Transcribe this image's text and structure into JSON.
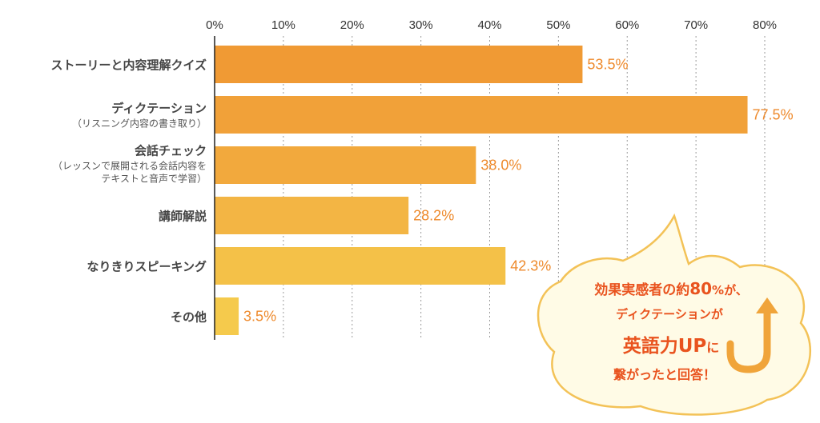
{
  "chart_data": {
    "type": "bar",
    "orientation": "horizontal",
    "categories": [
      {
        "label": "ストーリーと内容理解クイズ",
        "sublabel": []
      },
      {
        "label": "ディクテーション",
        "sublabel": [
          "（リスニング内容の書き取り）"
        ]
      },
      {
        "label": "会話チェック",
        "sublabel": [
          "（レッスンで展開される会話内容を",
          "テキストと音声で学習）"
        ]
      },
      {
        "label": "講師解説",
        "sublabel": []
      },
      {
        "label": "なりきりスピーキング",
        "sublabel": []
      },
      {
        "label": "その他",
        "sublabel": []
      }
    ],
    "values": [
      53.5,
      77.5,
      38.0,
      28.2,
      42.3,
      3.5
    ],
    "value_labels": [
      "53.5%",
      "77.5%",
      "38.0%",
      "28.2%",
      "42.3%",
      "3.5%"
    ],
    "xlim": [
      0,
      80
    ],
    "ticks": [
      "0%",
      "10%",
      "20%",
      "30%",
      "40%",
      "50%",
      "60%",
      "70%",
      "80%"
    ],
    "tick_values": [
      0,
      10,
      20,
      30,
      40,
      50,
      60,
      70,
      80
    ],
    "grid": "vertical-dashed",
    "axis_position": "top",
    "bar_colors": [
      "#f09a34",
      "#f1a139",
      "#f2a93d",
      "#f3b544",
      "#f4c148",
      "#f5ca4c"
    ],
    "value_label_color": "#ee8a2c"
  },
  "callout": {
    "line1_prefix": "効果実感者の約",
    "line1_number": "80",
    "line1_suffix": "%が、",
    "line2": "ディクテーションが",
    "line3_main": "英語力UP",
    "line3_suffix": "に",
    "line4": "繋がったと回答！",
    "text_color": "#e9531e",
    "bubble_fill": "#fffbe6",
    "bubble_stroke": "#f3c257",
    "arrow_color": "#f0a43a"
  }
}
